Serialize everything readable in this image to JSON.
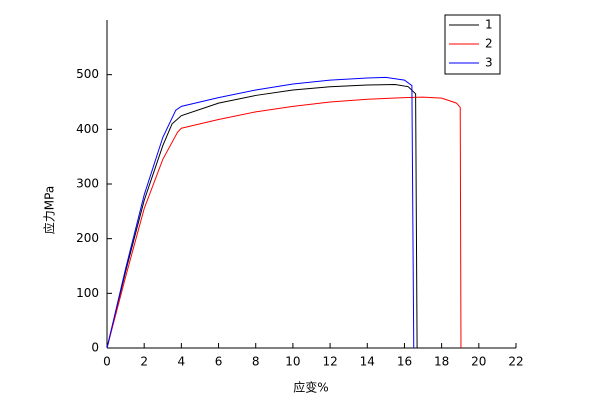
{
  "chart_data": {
    "type": "line",
    "x_label": "应变%",
    "y_label": "应力MPa",
    "xlim": [
      0,
      22
    ],
    "xticks": [
      0,
      2,
      4,
      6,
      8,
      10,
      12,
      14,
      16,
      18,
      20,
      22
    ],
    "ylim": [
      0,
      600
    ],
    "yticks": [
      0,
      100,
      200,
      300,
      400,
      500
    ],
    "grid": false,
    "legend": "upper right",
    "series": [
      {
        "name": "1",
        "color": "#000000",
        "x": [
          0,
          1,
          2,
          3,
          3.5,
          4,
          6,
          8,
          10,
          12,
          14,
          15.5,
          16.2,
          16.6,
          16.68
        ],
        "values": [
          0,
          140,
          270,
          370,
          410,
          425,
          448,
          462,
          472,
          478,
          481,
          482,
          478,
          465,
          0
        ]
      },
      {
        "name": "2",
        "color": "#ff0000",
        "x": [
          0,
          1,
          2,
          3,
          3.8,
          4,
          6,
          8,
          10,
          12,
          14,
          16,
          17,
          18,
          18.8,
          19,
          19.04
        ],
        "values": [
          0,
          130,
          255,
          345,
          395,
          402,
          418,
          432,
          442,
          450,
          455,
          458,
          459,
          457,
          448,
          440,
          0
        ]
      },
      {
        "name": "3",
        "color": "#0000ff",
        "x": [
          0,
          1,
          2,
          3,
          3.7,
          4,
          6,
          8,
          10,
          12,
          14,
          15,
          16,
          16.4,
          16.5
        ],
        "values": [
          0,
          145,
          280,
          385,
          435,
          442,
          458,
          472,
          483,
          490,
          494,
          495,
          490,
          480,
          0
        ]
      }
    ]
  }
}
